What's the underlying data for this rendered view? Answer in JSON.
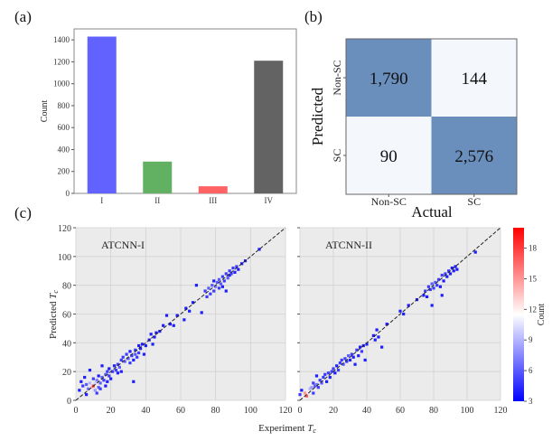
{
  "chart_data": [
    {
      "panel": "(a)",
      "type": "bar",
      "categories": [
        "I",
        "II",
        "III",
        "IV"
      ],
      "values": [
        1430,
        290,
        65,
        1210
      ],
      "colors": [
        "#6262ff",
        "#62b062",
        "#ff6262",
        "#636363"
      ],
      "ylabel": "Count",
      "xlabel": "",
      "ylim": [
        0,
        1500
      ],
      "yticks": [
        0,
        200,
        400,
        600,
        800,
        1000,
        1200,
        1400
      ]
    },
    {
      "panel": "(b)",
      "type": "heatmap",
      "rows": [
        "Non-SC",
        "SC"
      ],
      "cols": [
        "Non-SC",
        "SC"
      ],
      "values": [
        [
          1790,
          144
        ],
        [
          90,
          2576
        ]
      ],
      "labels": [
        [
          "1,790",
          "144"
        ],
        [
          "90",
          "2,576"
        ]
      ],
      "ylabel": "Predicted",
      "xlabel": "Actual",
      "colors": {
        "high": "#6a8fbd",
        "low": "#f4f8fd"
      }
    },
    {
      "panel": "(c)",
      "type": "scatter",
      "subplots": [
        {
          "title": "ATCNN-I",
          "points": [
            [
              2,
              7,
              4
            ],
            [
              3,
              13,
              4
            ],
            [
              4,
              10,
              5
            ],
            [
              5,
              16,
              4
            ],
            [
              6,
              4,
              4
            ],
            [
              6,
              11,
              6
            ],
            [
              7,
              8,
              7
            ],
            [
              8,
              12,
              9
            ],
            [
              8,
              21,
              4
            ],
            [
              9,
              9,
              14
            ],
            [
              10,
              10,
              18
            ],
            [
              10,
              15,
              5
            ],
            [
              11,
              7,
              8
            ],
            [
              11,
              12,
              10
            ],
            [
              12,
              14,
              7
            ],
            [
              12,
              5,
              5
            ],
            [
              13,
              9,
              6
            ],
            [
              13,
              17,
              4
            ],
            [
              14,
              8,
              5
            ],
            [
              14,
              12,
              6
            ],
            [
              15,
              16,
              6
            ],
            [
              15,
              24,
              4
            ],
            [
              16,
              14,
              5
            ],
            [
              17,
              18,
              6
            ],
            [
              17,
              10,
              4
            ],
            [
              18,
              20,
              5
            ],
            [
              18,
              13,
              4
            ],
            [
              19,
              22,
              4
            ],
            [
              19,
              17,
              5
            ],
            [
              20,
              15,
              4
            ],
            [
              21,
              20,
              5
            ],
            [
              22,
              24,
              4
            ],
            [
              23,
              21,
              5
            ],
            [
              24,
              19,
              4
            ],
            [
              24,
              25,
              5
            ],
            [
              25,
              23,
              6
            ],
            [
              26,
              28,
              5
            ],
            [
              26,
              20,
              4
            ],
            [
              27,
              30,
              5
            ],
            [
              28,
              27,
              6
            ],
            [
              29,
              32,
              5
            ],
            [
              30,
              29,
              6
            ],
            [
              31,
              34,
              4
            ],
            [
              31,
              26,
              5
            ],
            [
              32,
              31,
              5
            ],
            [
              33,
              28,
              4
            ],
            [
              33,
              13,
              4
            ],
            [
              34,
              35,
              5
            ],
            [
              34,
              32,
              6
            ],
            [
              35,
              30,
              5
            ],
            [
              36,
              38,
              4
            ],
            [
              36,
              33,
              5
            ],
            [
              37,
              36,
              4
            ],
            [
              38,
              39,
              4
            ],
            [
              39,
              32,
              4
            ],
            [
              40,
              38,
              4
            ],
            [
              42,
              42,
              4
            ],
            [
              43,
              46,
              4
            ],
            [
              44,
              39,
              4
            ],
            [
              45,
              44,
              4
            ],
            [
              46,
              47,
              4
            ],
            [
              48,
              48,
              4
            ],
            [
              50,
              52,
              4
            ],
            [
              52,
              59,
              4
            ],
            [
              54,
              53,
              4
            ],
            [
              56,
              52,
              4
            ],
            [
              58,
              59,
              4
            ],
            [
              62,
              56,
              4
            ],
            [
              63,
              64,
              4
            ],
            [
              65,
              62,
              4
            ],
            [
              67,
              68,
              4
            ],
            [
              69,
              80,
              4
            ],
            [
              72,
              61,
              4
            ],
            [
              74,
              76,
              5
            ],
            [
              75,
              72,
              5
            ],
            [
              76,
              78,
              6
            ],
            [
              77,
              74,
              5
            ],
            [
              78,
              80,
              6
            ],
            [
              79,
              76,
              5
            ],
            [
              79,
              83,
              4
            ],
            [
              80,
              79,
              7
            ],
            [
              81,
              82,
              6
            ],
            [
              82,
              78,
              5
            ],
            [
              82,
              84,
              6
            ],
            [
              83,
              81,
              6
            ],
            [
              84,
              86,
              5
            ],
            [
              84,
              79,
              4
            ],
            [
              85,
              83,
              5
            ],
            [
              86,
              76,
              4
            ],
            [
              86,
              88,
              5
            ],
            [
              87,
              85,
              6
            ],
            [
              88,
              90,
              5
            ],
            [
              88,
              87,
              4
            ],
            [
              89,
              88,
              5
            ],
            [
              90,
              92,
              5
            ],
            [
              91,
              89,
              4
            ],
            [
              92,
              93,
              5
            ],
            [
              93,
              91,
              4
            ],
            [
              95,
              95,
              4
            ],
            [
              97,
              97,
              4
            ],
            [
              105,
              105,
              4
            ]
          ]
        },
        {
          "title": "ATCNN-II",
          "points": [
            [
              0,
              4,
              5
            ],
            [
              1,
              7,
              4
            ],
            [
              2,
              2,
              12
            ],
            [
              3,
              5,
              15
            ],
            [
              4,
              3,
              17
            ],
            [
              5,
              6,
              12
            ],
            [
              6,
              8,
              9
            ],
            [
              7,
              9,
              8
            ],
            [
              8,
              5,
              5
            ],
            [
              8,
              12,
              5
            ],
            [
              9,
              10,
              6
            ],
            [
              10,
              11,
              7
            ],
            [
              10,
              17,
              4
            ],
            [
              11,
              9,
              5
            ],
            [
              12,
              14,
              5
            ],
            [
              13,
              12,
              6
            ],
            [
              14,
              16,
              5
            ],
            [
              15,
              18,
              5
            ],
            [
              16,
              13,
              4
            ],
            [
              17,
              19,
              5
            ],
            [
              18,
              16,
              4
            ],
            [
              19,
              20,
              5
            ],
            [
              20,
              22,
              5
            ],
            [
              21,
              19,
              4
            ],
            [
              22,
              24,
              4
            ],
            [
              23,
              21,
              5
            ],
            [
              24,
              26,
              5
            ],
            [
              25,
              28,
              5
            ],
            [
              26,
              25,
              6
            ],
            [
              27,
              29,
              5
            ],
            [
              28,
              27,
              5
            ],
            [
              29,
              31,
              6
            ],
            [
              30,
              28,
              4
            ],
            [
              31,
              32,
              5
            ],
            [
              32,
              30,
              4
            ],
            [
              33,
              25,
              4
            ],
            [
              34,
              35,
              5
            ],
            [
              35,
              31,
              4
            ],
            [
              36,
              37,
              4
            ],
            [
              37,
              34,
              5
            ],
            [
              38,
              38,
              4
            ],
            [
              39,
              28,
              4
            ],
            [
              40,
              39,
              4
            ],
            [
              44,
              45,
              4
            ],
            [
              45,
              42,
              4
            ],
            [
              46,
              49,
              4
            ],
            [
              47,
              44,
              4
            ],
            [
              49,
              37,
              4
            ],
            [
              52,
              53,
              4
            ],
            [
              60,
              62,
              4
            ],
            [
              62,
              60,
              4
            ],
            [
              65,
              66,
              4
            ],
            [
              70,
              70,
              4
            ],
            [
              74,
              73,
              4
            ],
            [
              75,
              76,
              5
            ],
            [
              76,
              72,
              4
            ],
            [
              77,
              79,
              5
            ],
            [
              78,
              77,
              5
            ],
            [
              79,
              66,
              4
            ],
            [
              79,
              81,
              6
            ],
            [
              80,
              78,
              5
            ],
            [
              81,
              82,
              6
            ],
            [
              82,
              80,
              5
            ],
            [
              83,
              84,
              5
            ],
            [
              84,
              79,
              4
            ],
            [
              85,
              73,
              4
            ],
            [
              85,
              87,
              5
            ],
            [
              86,
              83,
              4
            ],
            [
              87,
              88,
              5
            ],
            [
              88,
              86,
              4
            ],
            [
              89,
              90,
              5
            ],
            [
              90,
              88,
              4
            ],
            [
              91,
              92,
              4
            ],
            [
              92,
              90,
              4
            ],
            [
              93,
              93,
              4
            ],
            [
              94,
              91,
              4
            ],
            [
              105,
              103,
              4
            ]
          ]
        }
      ],
      "xlabel": "Experiment T_c",
      "ylabel": "Predicted T_c",
      "xlim": [
        0,
        120
      ],
      "ylim": [
        0,
        120
      ],
      "xticks": [
        0,
        20,
        40,
        60,
        80,
        100,
        120
      ],
      "yticks": [
        0,
        20,
        40,
        60,
        80,
        100,
        120
      ],
      "colorbar": {
        "label": "Count",
        "ticks": [
          3,
          6,
          9,
          12,
          15,
          18
        ],
        "range": [
          3,
          20
        ]
      }
    }
  ],
  "labels": {
    "panel_a": "(a)",
    "panel_b": "(b)",
    "panel_c": "(c)",
    "xlabel_main": "Experiment",
    "ylabel_main": "Predicted",
    "tc_symbol": "T",
    "tc_sub": "c"
  }
}
